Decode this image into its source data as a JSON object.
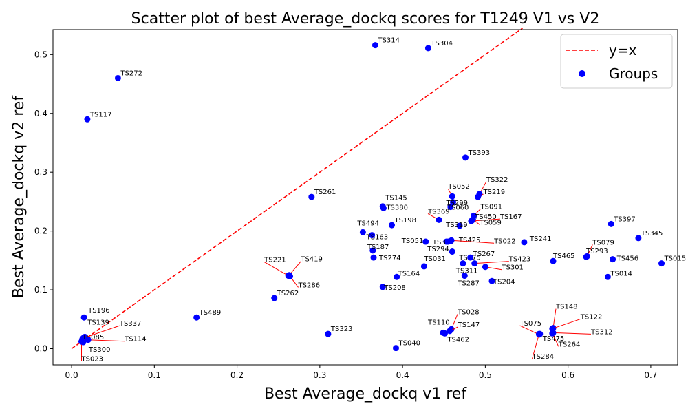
{
  "chart_data": {
    "type": "scatter",
    "title": "Scatter plot of best Average_dockq scores for T1249 V1 vs V2",
    "xlabel": "Best Average_dockq v1 ref",
    "ylabel": "Best Average_dockq v2 ref",
    "xlim": [
      -0.0225,
      0.7325
    ],
    "ylim": [
      -0.0275,
      0.5425
    ],
    "xticks": [
      0.0,
      0.1,
      0.2,
      0.3,
      0.4,
      0.5,
      0.6,
      0.7
    ],
    "xtick_labels": [
      "0.0",
      "0.1",
      "0.2",
      "0.3",
      "0.4",
      "0.5",
      "0.6",
      "0.7"
    ],
    "yticks": [
      0.0,
      0.1,
      0.2,
      0.3,
      0.4,
      0.5
    ],
    "ytick_labels": [
      "0.0",
      "0.1",
      "0.2",
      "0.3",
      "0.4",
      "0.5"
    ],
    "grid": false,
    "legend": {
      "position": "top-right",
      "entries": [
        {
          "label": "y=x",
          "kind": "line",
          "color": "#ff0000"
        },
        {
          "label": "Groups",
          "kind": "marker",
          "color": "#0000ff"
        }
      ]
    },
    "reference_line": {
      "name": "y=x",
      "color": "#ff0000",
      "style": "dashed",
      "from": [
        0,
        0
      ],
      "to": [
        0.545,
        0.545
      ]
    },
    "series": [
      {
        "name": "Groups",
        "color": "#0000ff",
        "points": [
          {
            "label": "TS314",
            "x": 0.367,
            "y": 0.516
          },
          {
            "label": "TS304",
            "x": 0.431,
            "y": 0.511
          },
          {
            "label": "TS272",
            "x": 0.056,
            "y": 0.46
          },
          {
            "label": "TS117",
            "x": 0.019,
            "y": 0.39
          },
          {
            "label": "TS393",
            "x": 0.476,
            "y": 0.325
          },
          {
            "label": "TS261",
            "x": 0.29,
            "y": 0.258
          },
          {
            "label": "TS052",
            "x": 0.46,
            "y": 0.259
          },
          {
            "label": "TS322",
            "x": 0.493,
            "y": 0.263
          },
          {
            "label": "TS219",
            "x": 0.491,
            "y": 0.258
          },
          {
            "label": "TS299",
            "x": 0.461,
            "y": 0.249
          },
          {
            "label": "TS060",
            "x": 0.458,
            "y": 0.241
          },
          {
            "label": "TS091",
            "x": 0.486,
            "y": 0.226
          },
          {
            "label": "TS145",
            "x": 0.376,
            "y": 0.242
          },
          {
            "label": "TS380",
            "x": 0.377,
            "y": 0.239
          },
          {
            "label": "TS369",
            "x": 0.444,
            "y": 0.219
          },
          {
            "label": "TS450",
            "x": 0.484,
            "y": 0.218
          },
          {
            "label": "TS167",
            "x": 0.483,
            "y": 0.217
          },
          {
            "label": "TS059",
            "x": 0.485,
            "y": 0.22
          },
          {
            "label": "TS319",
            "x": 0.469,
            "y": 0.209
          },
          {
            "label": "TS198",
            "x": 0.387,
            "y": 0.21
          },
          {
            "label": "TS494",
            "x": 0.352,
            "y": 0.198
          },
          {
            "label": "TS163",
            "x": 0.363,
            "y": 0.193
          },
          {
            "label": "TS051",
            "x": 0.428,
            "y": 0.182
          },
          {
            "label": "TS331",
            "x": 0.453,
            "y": 0.182
          },
          {
            "label": "TS425",
            "x": 0.458,
            "y": 0.183
          },
          {
            "label": "TS022",
            "x": 0.459,
            "y": 0.184
          },
          {
            "label": "TS294",
            "x": 0.455,
            "y": 0.182
          },
          {
            "label": "TS375",
            "x": 0.46,
            "y": 0.165
          },
          {
            "label": "TS241",
            "x": 0.547,
            "y": 0.181
          },
          {
            "label": "TS187",
            "x": 0.364,
            "y": 0.167
          },
          {
            "label": "TS274",
            "x": 0.365,
            "y": 0.155
          },
          {
            "label": "TS267",
            "x": 0.482,
            "y": 0.155
          },
          {
            "label": "TS423",
            "x": 0.487,
            "y": 0.145
          },
          {
            "label": "TS311",
            "x": 0.473,
            "y": 0.145
          },
          {
            "label": "TS301",
            "x": 0.5,
            "y": 0.139
          },
          {
            "label": "TS287",
            "x": 0.475,
            "y": 0.124
          },
          {
            "label": "TS204",
            "x": 0.508,
            "y": 0.115
          },
          {
            "label": "TS031",
            "x": 0.426,
            "y": 0.14
          },
          {
            "label": "TS164",
            "x": 0.393,
            "y": 0.122
          },
          {
            "label": "TS208",
            "x": 0.376,
            "y": 0.105
          },
          {
            "label": "TS221",
            "x": 0.262,
            "y": 0.124
          },
          {
            "label": "TS419",
            "x": 0.263,
            "y": 0.125
          },
          {
            "label": "TS286",
            "x": 0.264,
            "y": 0.123
          },
          {
            "label": "TS262",
            "x": 0.245,
            "y": 0.086
          },
          {
            "label": "TS489",
            "x": 0.151,
            "y": 0.053
          },
          {
            "label": "TS397",
            "x": 0.652,
            "y": 0.212
          },
          {
            "label": "TS345",
            "x": 0.685,
            "y": 0.188
          },
          {
            "label": "TS079",
            "x": 0.623,
            "y": 0.157
          },
          {
            "label": "TS293",
            "x": 0.622,
            "y": 0.156
          },
          {
            "label": "TS465",
            "x": 0.582,
            "y": 0.149
          },
          {
            "label": "TS456",
            "x": 0.654,
            "y": 0.152
          },
          {
            "label": "TS015",
            "x": 0.713,
            "y": 0.145
          },
          {
            "label": "TS014",
            "x": 0.648,
            "y": 0.122
          },
          {
            "label": "TS148",
            "x": 0.582,
            "y": 0.035
          },
          {
            "label": "TS122",
            "x": 0.581,
            "y": 0.034
          },
          {
            "label": "TS475",
            "x": 0.566,
            "y": 0.025
          },
          {
            "label": "TS312",
            "x": 0.582,
            "y": 0.027
          },
          {
            "label": "TS075",
            "x": 0.565,
            "y": 0.024
          },
          {
            "label": "TS264",
            "x": 0.581,
            "y": 0.026
          },
          {
            "label": "TS284",
            "x": 0.565,
            "y": 0.025
          },
          {
            "label": "TS028",
            "x": 0.459,
            "y": 0.033
          },
          {
            "label": "TS147",
            "x": 0.457,
            "y": 0.03
          },
          {
            "label": "TS110",
            "x": 0.449,
            "y": 0.027
          },
          {
            "label": "TS462",
            "x": 0.451,
            "y": 0.026
          },
          {
            "label": "TS323",
            "x": 0.31,
            "y": 0.025
          },
          {
            "label": "TS040",
            "x": 0.392,
            "y": 0.001
          },
          {
            "label": "TS196",
            "x": 0.015,
            "y": 0.053
          },
          {
            "label": "TS139",
            "x": 0.016,
            "y": 0.02
          },
          {
            "label": "TS337",
            "x": 0.014,
            "y": 0.018
          },
          {
            "label": "TS085",
            "x": 0.013,
            "y": 0.016
          },
          {
            "label": "TS114",
            "x": 0.02,
            "y": 0.015
          },
          {
            "label": "TS300",
            "x": 0.014,
            "y": 0.011
          },
          {
            "label": "TS023",
            "x": 0.012,
            "y": 0.012
          }
        ]
      }
    ]
  }
}
